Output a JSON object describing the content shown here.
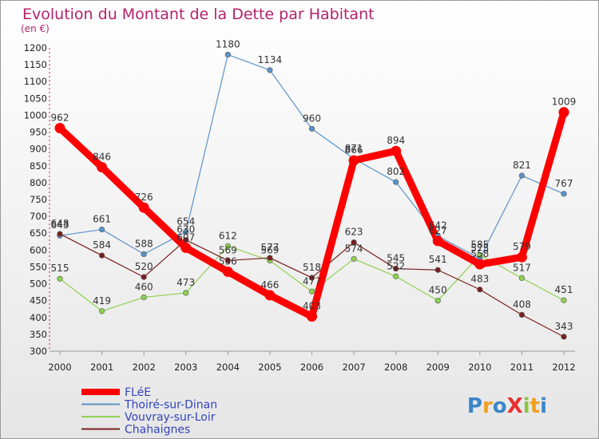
{
  "chart_data": {
    "type": "line",
    "title": "Evolution du Montant de la Dette par Habitant",
    "subtitle": "(en €)",
    "x": [
      "2000",
      "2001",
      "2002",
      "2003",
      "2004",
      "2005",
      "2006",
      "2007",
      "2008",
      "2009",
      "2010",
      "2011",
      "2012"
    ],
    "ylim": [
      300,
      1200
    ],
    "ystep": 50,
    "grid": false,
    "legend_position": "bottom-left",
    "series": [
      {
        "name": "FLéE",
        "color": "#ff0000",
        "values": [
          962,
          846,
          726,
          607,
          536,
          466,
          403,
          866,
          894,
          627,
          558,
          579,
          1009
        ]
      },
      {
        "name": "Thoiré-sur-Dinan",
        "color": "#5b93c9",
        "values": [
          643,
          661,
          588,
          654,
          1180,
          1134,
          960,
          871,
          802,
          642,
          575,
          821,
          767
        ]
      },
      {
        "name": "Vouvray-sur-Loir",
        "color": "#8fd14f",
        "values": [
          515,
          419,
          460,
          473,
          612,
          569,
          477,
          574,
          522,
          450,
          585,
          517,
          451
        ]
      },
      {
        "name": "Chahaignes",
        "color": "#7a1f1f",
        "values": [
          648,
          584,
          520,
          630,
          569,
          577,
          518,
          623,
          545,
          541,
          483,
          408,
          343
        ]
      }
    ]
  },
  "logo": {
    "text": "ProXiti"
  }
}
